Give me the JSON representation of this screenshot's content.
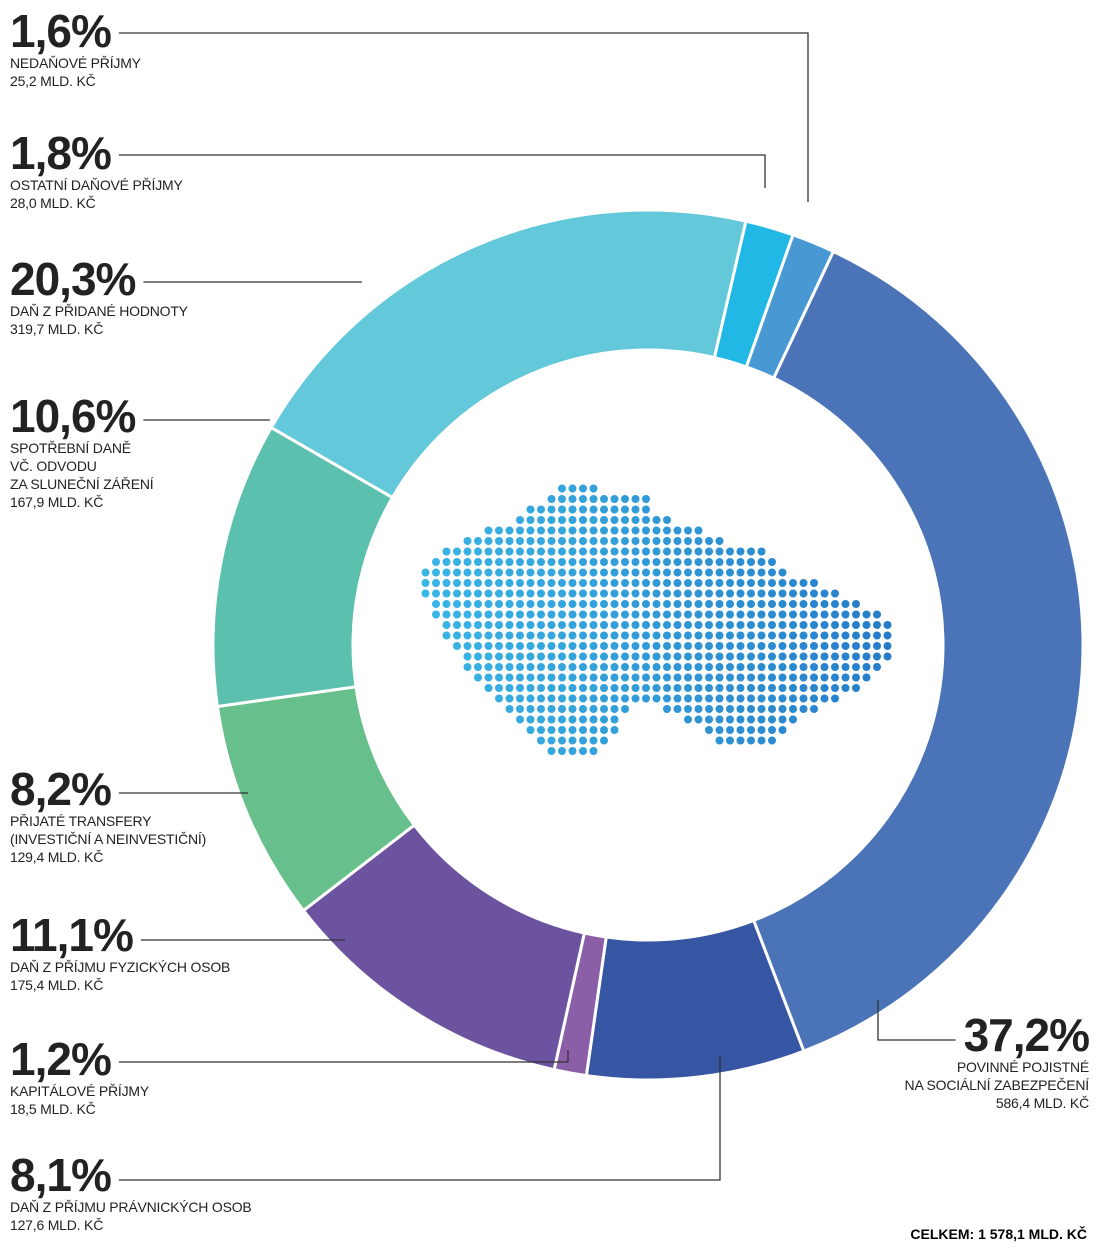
{
  "chart_data": {
    "type": "donut",
    "categories": [
      "OSTATNÍ DAŇOVÉ PŘÍJMY",
      "NEDAŇOVÉ PŘÍJMY",
      "POVINNÉ POJISTNÉ\nNA SOCIÁLNÍ ZABEZPEČENÍ",
      "DAŇ Z PŘÍJMU PRÁVNICKÝCH OSOB",
      "KAPITÁLOVÉ PŘÍJMY",
      "DAŇ Z PŘÍJMU FYZICKÝCH OSOB",
      "PŘIJATÉ TRANSFERY\n(INVESTIČNÍ A NEINVESTIČNÍ)",
      "SPOTŘEBNÍ DANĚ\nVČ. ODVODU\nZA SLUNEČNÍ ZÁŘENÍ",
      "DAŇ Z PŘIDANÉ HODNOTY"
    ],
    "values": [
      1.8,
      1.6,
      37.2,
      8.1,
      1.2,
      11.1,
      8.2,
      10.6,
      20.3
    ],
    "value_labels": [
      "1,8%",
      "1,6%",
      "37,2%",
      "8,1%",
      "1,2%",
      "11,1%",
      "8,2%",
      "10,6%",
      "20,3%"
    ],
    "amount_labels": [
      "28,0 MLD. KČ",
      "25,2 MLD. KČ",
      "586,4 MLD. KČ",
      "127,6 MLD. KČ",
      "18,5 MLD. KČ",
      "175,4 MLD. KČ",
      "129,4 MLD. KČ",
      "167,9 MLD. KČ",
      "319,7 MLD. KČ"
    ],
    "colors": [
      "#22b8e6",
      "#4898d3",
      "#4a74b7",
      "#3655a3",
      "#8b5ea8",
      "#6b53a0",
      "#67c08c",
      "#5bc0ae",
      "#63c8da"
    ],
    "total_label": "CELKEM: 1 578,1 MLD. KČ"
  }
}
